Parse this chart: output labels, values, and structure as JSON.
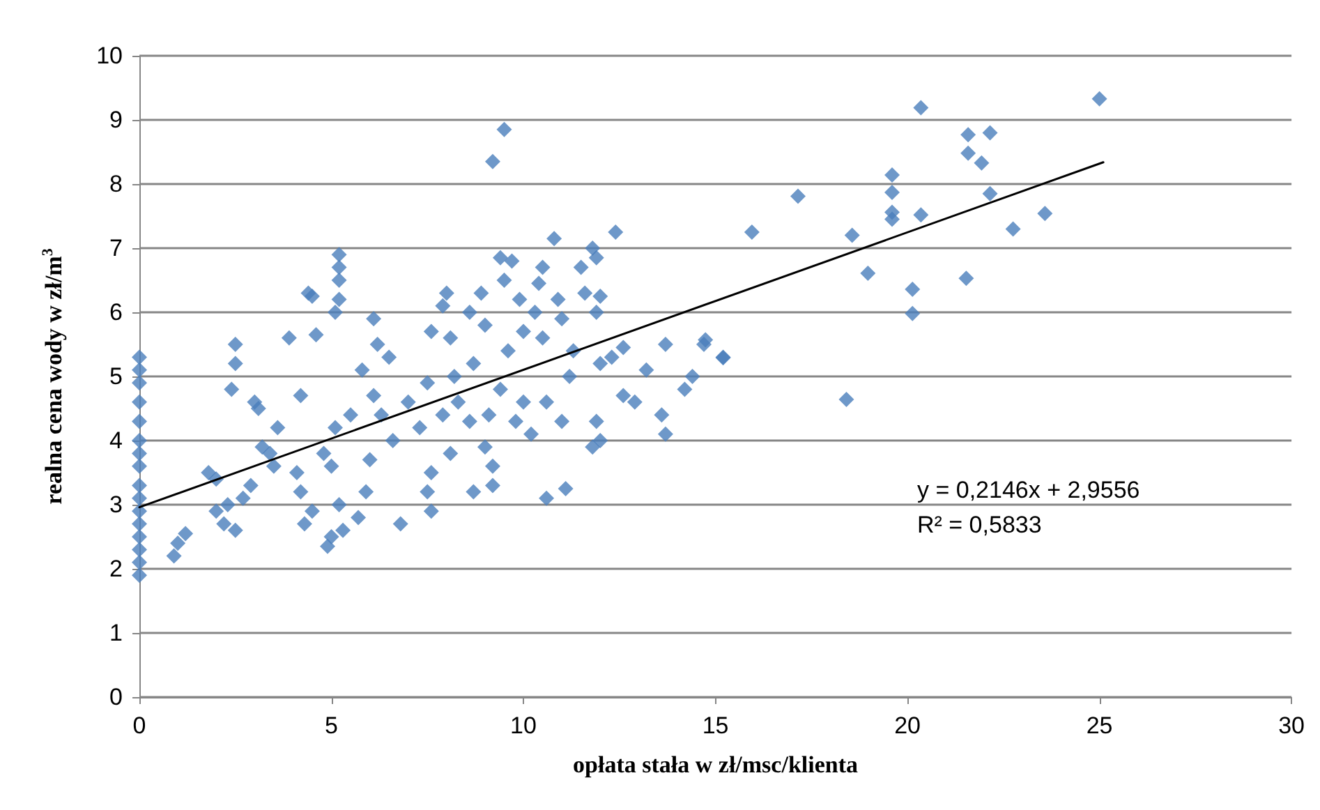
{
  "chart_data": {
    "type": "scatter",
    "xlabel": "opłata stała w zł/msc/klienta",
    "ylabel": "realna cena wody w zł/m$^{3}$",
    "annotations": [
      "y = 0,2146x + 2,9556",
      "R² = 0,5833"
    ],
    "xlim": [
      0,
      30
    ],
    "xticks": [
      0,
      5,
      10,
      15,
      20,
      25,
      30
    ],
    "ylim": [
      0,
      10
    ],
    "yticks": [
      0,
      1,
      2,
      3,
      4,
      5,
      6,
      7,
      8,
      9,
      10
    ],
    "grid": "y",
    "marker": "diamond",
    "series": [
      {
        "color": "#4a7ebb",
        "x": [
          0,
          0,
          0,
          0,
          0,
          0,
          0,
          0,
          0,
          0,
          0,
          0,
          0,
          0,
          0,
          0,
          0.9,
          1,
          1.2,
          1.8,
          2,
          2.2,
          2,
          2.4,
          2.5,
          2.5,
          2.5,
          2.3,
          2.7,
          3,
          3.1,
          3.2,
          2.9,
          3.5,
          3.6,
          3.4,
          3.9,
          4.2,
          4.4,
          4.5,
          4.2,
          4.3,
          4.5,
          4.1,
          4.6,
          4.8,
          4.9,
          5,
          5.2,
          5.2,
          5.2,
          5.2,
          5.1,
          5.1,
          5,
          5.2,
          5.3,
          5.5,
          5.8,
          5.7,
          6.1,
          6.2,
          6.5,
          6.1,
          6.3,
          6,
          5.9,
          6.8,
          6.6,
          7,
          7.3,
          7.6,
          7.5,
          7.6,
          7.6,
          7.5,
          7.9,
          8,
          8.1,
          8.2,
          7.9,
          8.1,
          8.3,
          8.6,
          8.7,
          8.6,
          8.7,
          8.9,
          9,
          9.1,
          9,
          9.2,
          9.2,
          9.2,
          9.5,
          9.4,
          9.5,
          9.7,
          9.6,
          9.4,
          9.8,
          9.9,
          10,
          10,
          10.2,
          10.4,
          10.3,
          10.5,
          10.6,
          10.8,
          10.5,
          10.9,
          11,
          10.6,
          11.1,
          11,
          11.2,
          11.3,
          11.5,
          11.6,
          11.8,
          11.9,
          12,
          11.9,
          12,
          11.9,
          11.8,
          12,
          12.4,
          12.3,
          12.6,
          12.6,
          12.9,
          13.2,
          13.7,
          13.6,
          13.7,
          14.2,
          14.4,
          14.7,
          15.2,
          15.95,
          17.15,
          14.74,
          15.2,
          18.56,
          18.97,
          18.41,
          20.13,
          20.13,
          19.6,
          19.6,
          19.6,
          19.6,
          20.35,
          20.35,
          21.58,
          21.58,
          22.15,
          21.93,
          22.15,
          21.53,
          22.75,
          23.58,
          25
        ],
        "values": [
          1.9,
          2.1,
          2.3,
          2.5,
          2.7,
          2.9,
          3.1,
          3.3,
          3.6,
          3.8,
          4,
          4.3,
          4.6,
          4.9,
          5.1,
          5.3,
          2.2,
          2.4,
          2.55,
          3.5,
          3.4,
          2.7,
          2.9,
          4.8,
          5.5,
          5.2,
          2.6,
          3,
          3.1,
          4.6,
          4.5,
          3.9,
          3.3,
          3.6,
          4.2,
          3.8,
          5.6,
          4.7,
          6.3,
          6.25,
          3.2,
          2.7,
          2.9,
          3.5,
          5.65,
          3.8,
          2.35,
          2.5,
          6.9,
          6.7,
          6.5,
          6.2,
          6,
          4.2,
          3.6,
          3,
          2.6,
          4.4,
          5.1,
          2.8,
          5.9,
          5.5,
          5.3,
          4.7,
          4.4,
          3.7,
          3.2,
          2.7,
          4,
          4.6,
          4.2,
          5.7,
          4.9,
          3.5,
          2.9,
          3.2,
          6.1,
          6.3,
          5.6,
          5,
          4.4,
          3.8,
          4.6,
          4.3,
          5.2,
          6,
          3.2,
          6.3,
          5.8,
          4.4,
          3.9,
          3.6,
          3.3,
          8.35,
          8.85,
          6.85,
          6.5,
          6.8,
          5.4,
          4.8,
          4.3,
          6.2,
          5.7,
          4.6,
          4.1,
          6.45,
          6,
          5.6,
          4.6,
          7.15,
          6.7,
          6.2,
          5.9,
          3.1,
          3.25,
          4.3,
          5,
          5.4,
          6.7,
          6.3,
          7,
          6.85,
          6.25,
          6,
          5.2,
          4.3,
          3.9,
          4,
          7.25,
          5.3,
          5.45,
          4.7,
          4.6,
          5.1,
          5.5,
          4.4,
          4.1,
          4.8,
          5,
          5.5,
          5.3,
          7.25,
          7.81,
          5.57,
          5.29,
          7.2,
          6.61,
          4.64,
          6.36,
          5.98,
          8.14,
          7.87,
          7.56,
          7.45,
          9.19,
          7.52,
          8.77,
          8.48,
          8.8,
          8.33,
          7.85,
          6.53,
          7.3,
          7.54,
          9.33
        ]
      },
      {
        "type": "line",
        "color": "#000000",
        "marker": "none",
        "x": [
          0,
          25.1
        ],
        "values": [
          2.96,
          8.34
        ]
      }
    ]
  }
}
